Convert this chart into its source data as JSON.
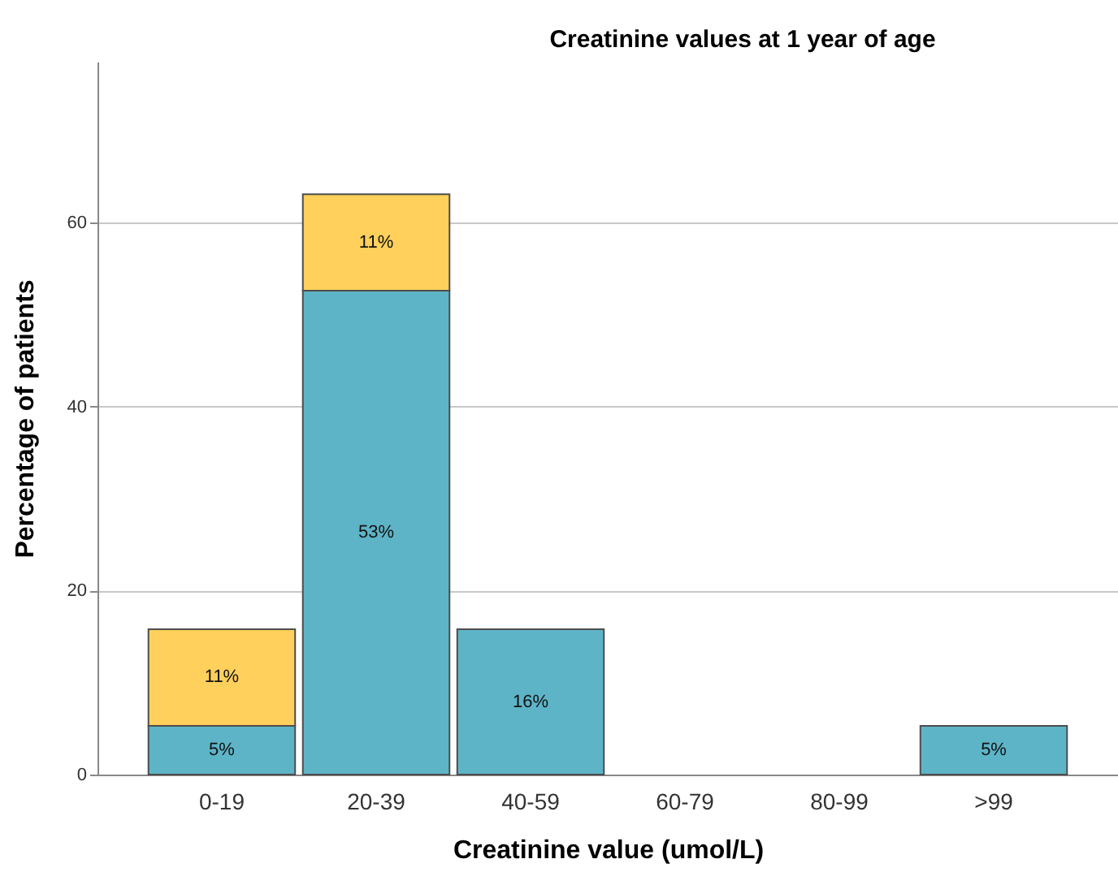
{
  "chart_data": {
    "type": "bar",
    "title": "Creatinine values at 1 year of age",
    "xlabel": "Creatinine value (umol/L)",
    "ylabel": "Percentage of patients",
    "categories": [
      "0-19",
      "20-39",
      "40-59",
      "60-79",
      "80-99",
      ">99"
    ],
    "stacked": true,
    "ylim": [
      0,
      77.5
    ],
    "yticks": [
      0,
      20,
      40,
      60
    ],
    "grid": "y",
    "series": [
      {
        "color": "#5eb4c7",
        "values": [
          5.3,
          52.6,
          15.8,
          null,
          null,
          5.3
        ],
        "value_labels": [
          "5%",
          "53%",
          "16%",
          null,
          null,
          "5%"
        ]
      },
      {
        "color": "#ffd05b",
        "values": [
          10.5,
          10.5,
          null,
          null,
          null,
          null
        ],
        "value_labels": [
          "11%",
          "11%",
          null,
          null,
          null,
          null
        ]
      }
    ]
  }
}
